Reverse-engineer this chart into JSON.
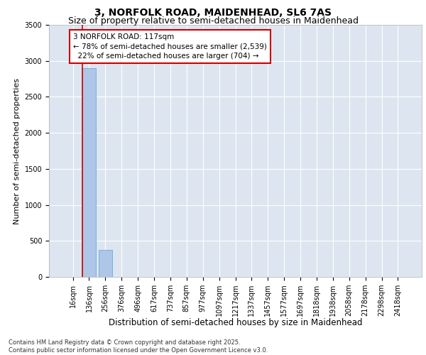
{
  "title_line1": "3, NORFOLK ROAD, MAIDENHEAD, SL6 7AS",
  "title_line2": "Size of property relative to semi-detached houses in Maidenhead",
  "xlabel": "Distribution of semi-detached houses by size in Maidenhead",
  "ylabel": "Number of semi-detached properties",
  "footer_line1": "Contains HM Land Registry data © Crown copyright and database right 2025.",
  "footer_line2": "Contains public sector information licensed under the Open Government Licence v3.0.",
  "bin_labels": [
    "16sqm",
    "136sqm",
    "256sqm",
    "376sqm",
    "496sqm",
    "617sqm",
    "737sqm",
    "857sqm",
    "977sqm",
    "1097sqm",
    "1217sqm",
    "1337sqm",
    "1457sqm",
    "1577sqm",
    "1697sqm",
    "1818sqm",
    "1938sqm",
    "2058sqm",
    "2178sqm",
    "2298sqm",
    "2418sqm"
  ],
  "bar_values": [
    0,
    2900,
    370,
    0,
    0,
    0,
    0,
    0,
    0,
    0,
    0,
    0,
    0,
    0,
    0,
    0,
    0,
    0,
    0,
    0,
    0
  ],
  "bar_color": "#aec6e8",
  "bar_edgecolor": "#6aaad4",
  "background_color": "#dde6f0",
  "grid_color": "#ffffff",
  "annotation_text": "3 NORFOLK ROAD: 117sqm\n← 78% of semi-detached houses are smaller (2,539)\n  22% of semi-detached houses are larger (704) →",
  "annotation_box_facecolor": "#ffffff",
  "annotation_box_edgecolor": "#cc0000",
  "vline_color": "#cc0000",
  "ylim": [
    0,
    3500
  ],
  "yticks": [
    0,
    500,
    1000,
    1500,
    2000,
    2500,
    3000,
    3500
  ],
  "title_fontsize": 10,
  "subtitle_fontsize": 9,
  "xlabel_fontsize": 8.5,
  "ylabel_fontsize": 8,
  "tick_fontsize": 7,
  "annotation_fontsize": 7.5,
  "footer_fontsize": 6
}
